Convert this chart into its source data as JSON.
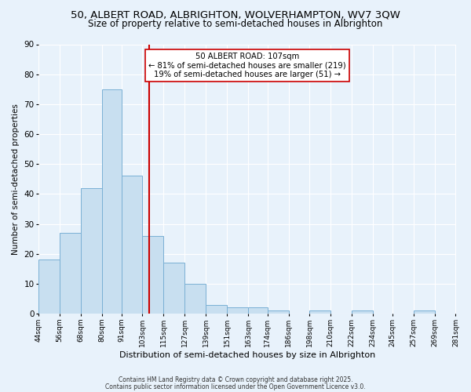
{
  "title": "50, ALBERT ROAD, ALBRIGHTON, WOLVERHAMPTON, WV7 3QW",
  "subtitle": "Size of property relative to semi-detached houses in Albrighton",
  "xlabel": "Distribution of semi-detached houses by size in Albrighton",
  "ylabel": "Number of semi-detached properties",
  "bar_color": "#c8dff0",
  "bar_edge_color": "#7ab0d4",
  "bin_edges": [
    44,
    56,
    68,
    80,
    91,
    103,
    115,
    127,
    139,
    151,
    163,
    174,
    186,
    198,
    210,
    222,
    234,
    245,
    257,
    269,
    281
  ],
  "bin_labels": [
    "44sqm",
    "56sqm",
    "68sqm",
    "80sqm",
    "91sqm",
    "103sqm",
    "115sqm",
    "127sqm",
    "139sqm",
    "151sqm",
    "163sqm",
    "174sqm",
    "186sqm",
    "198sqm",
    "210sqm",
    "222sqm",
    "234sqm",
    "245sqm",
    "257sqm",
    "269sqm",
    "281sqm"
  ],
  "counts": [
    18,
    27,
    42,
    75,
    46,
    26,
    17,
    10,
    3,
    2,
    2,
    1,
    0,
    1,
    0,
    1,
    0,
    0,
    1,
    0
  ],
  "vline_x": 107,
  "annotation_title": "50 ALBERT ROAD: 107sqm",
  "annotation_line1": "← 81% of semi-detached houses are smaller (219)",
  "annotation_line2": "19% of semi-detached houses are larger (51) →",
  "ylim": [
    0,
    90
  ],
  "yticks": [
    0,
    10,
    20,
    30,
    40,
    50,
    60,
    70,
    80,
    90
  ],
  "footer1": "Contains HM Land Registry data © Crown copyright and database right 2025.",
  "footer2": "Contains public sector information licensed under the Open Government Licence v3.0.",
  "background_color": "#e8f2fb",
  "plot_bg_color": "#e8f2fb",
  "vline_color": "#cc0000",
  "title_fontsize": 9.5,
  "subtitle_fontsize": 8.5,
  "annotation_box_color": "white",
  "annotation_edge_color": "#cc0000"
}
